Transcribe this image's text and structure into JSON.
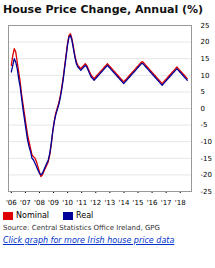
{
  "chart_data": {
    "type": "line",
    "title": "House Price Change, Annual (%)",
    "annotations": [
      "Source: Central Statistics Office Ireland, GPG",
      "Click graph for more Irish house price data"
    ],
    "x": [
      2006,
      2006.105,
      2006.2101,
      2006.3151,
      2006.4202,
      2006.5252,
      2006.6303,
      2006.7353,
      2006.8403,
      2006.9454,
      2007.0504,
      2007.1555,
      2007.2605,
      2007.3655,
      2007.4706,
      2007.5756,
      2007.6807,
      2007.7857,
      2007.8908,
      2007.9958,
      2008.1008,
      2008.2059,
      2008.3109,
      2008.416,
      2008.521,
      2008.6261,
      2008.7311,
      2008.8361,
      2008.9412,
      2009.0462,
      2009.1513,
      2009.2563,
      2009.3613,
      2009.4664,
      2009.5714,
      2009.6765,
      2009.7815,
      2009.8866,
      2009.9916,
      2010.0966,
      2010.2017,
      2010.3067,
      2010.4118,
      2010.5168,
      2010.6218,
      2010.7269,
      2010.8319,
      2010.937,
      2011.042,
      2011.1471,
      2011.2521,
      2011.3571,
      2011.4622,
      2011.5672,
      2011.6723,
      2011.7773,
      2011.8824,
      2011.9874,
      2012.0924,
      2012.1975,
      2012.3025,
      2012.4076,
      2012.5126,
      2012.6176,
      2012.7227,
      2012.8277,
      2012.9328,
      2013.0378,
      2013.1429,
      2013.2479,
      2013.3529,
      2013.458,
      2013.563,
      2013.6681,
      2013.7731,
      2013.8782,
      2013.9832,
      2014.0882,
      2014.1933,
      2014.2983,
      2014.4034,
      2014.5084,
      2014.6134,
      2014.7185,
      2014.8235,
      2014.9286,
      2015.0336,
      2015.1387,
      2015.2437,
      2015.3487,
      2015.4538,
      2015.5588,
      2015.6639,
      2015.7689,
      2015.8739,
      2015.979,
      2016.084,
      2016.1891,
      2016.2941,
      2016.3992,
      2016.5042,
      2016.6092,
      2016.7143,
      2016.8193,
      2016.9244,
      2017.0294,
      2017.1345,
      2017.2395,
      2017.3445,
      2017.4496,
      2017.5546,
      2017.6597,
      2017.7647,
      2017.8697,
      2017.9748,
      2018.0798,
      2018.1849,
      2018.2899,
      2018.395,
      2018.5
    ],
    "series": [
      {
        "name": "Nominal",
        "color": "#dd0000",
        "values": [
          13.0,
          16.0,
          18.0,
          17.0,
          14.0,
          11.0,
          8.0,
          4.0,
          1.0,
          -2.0,
          -5.0,
          -8.0,
          -10.0,
          -12.0,
          -14.0,
          -14.5,
          -15.0,
          -16.0,
          -17.5,
          -19.0,
          -20.5,
          -20.0,
          -19.0,
          -18.0,
          -17.0,
          -16.0,
          -14.0,
          -11.0,
          -7.0,
          -4.0,
          -1.5,
          0.0,
          1.5,
          3.5,
          6.0,
          9.0,
          12.5,
          16.0,
          19.5,
          22.0,
          22.5,
          21.0,
          18.5,
          16.0,
          14.0,
          13.0,
          12.5,
          12.0,
          12.5,
          13.0,
          13.5,
          13.0,
          12.0,
          11.0,
          10.0,
          9.5,
          9.0,
          9.5,
          10.0,
          10.5,
          11.0,
          11.5,
          12.0,
          12.5,
          13.0,
          13.5,
          13.0,
          12.5,
          12.0,
          11.5,
          11.0,
          10.5,
          10.0,
          9.5,
          9.0,
          8.5,
          8.0,
          8.5,
          9.0,
          9.5,
          10.0,
          10.5,
          11.0,
          11.5,
          12.0,
          12.5,
          13.0,
          13.5,
          14.0,
          14.0,
          13.5,
          13.0,
          12.5,
          12.0,
          11.5,
          11.0,
          10.5,
          10.0,
          9.5,
          9.0,
          8.5,
          8.0,
          7.5,
          8.0,
          8.5,
          9.0,
          9.5,
          10.0,
          10.5,
          11.0,
          11.5,
          12.0,
          12.5,
          12.0,
          11.5,
          11.0,
          10.5,
          10.0,
          9.5,
          9.0
        ]
      },
      {
        "name": "Real",
        "color": "#000099",
        "values": [
          11.0,
          13.0,
          15.0,
          14.0,
          12.0,
          9.0,
          6.5,
          3.0,
          -0.5,
          -3.5,
          -6.5,
          -9.5,
          -11.5,
          -13.0,
          -15.0,
          -15.5,
          -16.5,
          -17.5,
          -18.5,
          -19.5,
          -20.0,
          -19.5,
          -18.5,
          -17.5,
          -16.5,
          -15.5,
          -13.5,
          -10.5,
          -7.0,
          -4.0,
          -2.0,
          -0.5,
          1.0,
          3.0,
          5.5,
          8.5,
          12.0,
          15.5,
          19.0,
          21.5,
          22.0,
          20.5,
          18.0,
          15.5,
          13.5,
          12.5,
          12.0,
          11.5,
          12.0,
          12.5,
          13.0,
          12.5,
          11.5,
          10.5,
          9.5,
          9.0,
          8.5,
          9.0,
          9.5,
          10.0,
          10.5,
          11.0,
          11.5,
          12.0,
          12.5,
          13.0,
          12.5,
          12.0,
          11.5,
          11.0,
          10.5,
          10.0,
          9.5,
          9.0,
          8.5,
          8.0,
          7.5,
          8.0,
          8.5,
          9.0,
          9.5,
          10.0,
          10.5,
          11.0,
          11.5,
          12.0,
          12.5,
          13.0,
          13.5,
          13.5,
          13.0,
          12.5,
          12.0,
          11.5,
          11.0,
          10.5,
          10.0,
          9.5,
          9.0,
          8.5,
          8.0,
          7.5,
          7.0,
          7.5,
          8.0,
          8.5,
          9.0,
          9.5,
          10.0,
          10.5,
          11.0,
          11.5,
          12.0,
          11.5,
          11.0,
          10.5,
          10.0,
          9.5,
          9.0,
          8.5
        ]
      }
    ],
    "xlim": [
      2005.8,
      2018.8
    ],
    "xticks": [
      {
        "value": 2006,
        "label": "'06"
      },
      {
        "value": 2007,
        "label": "'07"
      },
      {
        "value": 2008,
        "label": "'08"
      },
      {
        "value": 2009,
        "label": "'09"
      },
      {
        "value": 2010,
        "label": "'10"
      },
      {
        "value": 2011,
        "label": "'11"
      },
      {
        "value": 2012,
        "label": "'12"
      },
      {
        "value": 2013,
        "label": "'13"
      },
      {
        "value": 2014,
        "label": "'14"
      },
      {
        "value": 2015,
        "label": "'15"
      },
      {
        "value": 2016,
        "label": "'16"
      },
      {
        "value": 2017,
        "label": "'17"
      },
      {
        "value": 2018,
        "label": "'18"
      }
    ],
    "ylim": [
      -25,
      25
    ],
    "yticks": [
      -25,
      -20,
      -15,
      -10,
      -5,
      0,
      5,
      10,
      15,
      20,
      25
    ],
    "grid": true,
    "legend": "bottom"
  }
}
